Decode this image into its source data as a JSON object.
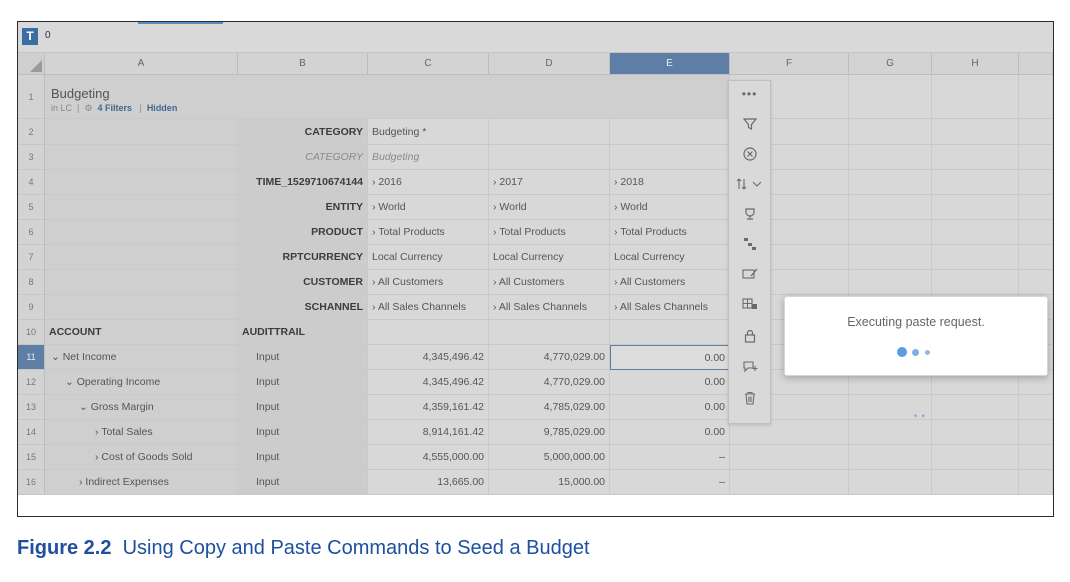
{
  "formula_bar": {
    "icon": "T",
    "value": "0"
  },
  "columns": [
    "A",
    "B",
    "C",
    "D",
    "E",
    "F",
    "G",
    "H"
  ],
  "rows": [
    "1",
    "2",
    "3",
    "4",
    "5",
    "6",
    "7",
    "8",
    "9",
    "10",
    "11",
    "12",
    "13",
    "14",
    "15",
    "16"
  ],
  "header": {
    "title": "Budgeting",
    "in_lc": "in LC",
    "filters": "4 Filters",
    "hidden": "Hidden"
  },
  "dims": [
    {
      "name": "CATEGORY",
      "c": "Budgeting *",
      "d": "",
      "e": ""
    },
    {
      "name": "CATEGORY",
      "c": "Budgeting",
      "d": "",
      "e": ""
    },
    {
      "name": "TIME_1529710674144",
      "c": "2016",
      "d": "2017",
      "e": "2018"
    },
    {
      "name": "ENTITY",
      "c": "World",
      "d": "World",
      "e": "World"
    },
    {
      "name": "PRODUCT",
      "c": "Total Products",
      "d": "Total Products",
      "e": "Total Products"
    },
    {
      "name": "RPTCURRENCY",
      "c": "Local Currency",
      "d": "Local Currency",
      "e": "Local Currency"
    },
    {
      "name": "CUSTOMER",
      "c": "All Customers",
      "d": "All Customers",
      "e": "All Customers"
    },
    {
      "name": "SCHANNEL",
      "c": "All Sales Channels",
      "d": "All Sales Channels",
      "e": "All Sales Channels"
    }
  ],
  "row_headers": {
    "account": "ACCOUNT",
    "audittrail": "AUDITTRAIL"
  },
  "data_rows": [
    {
      "account": "Net Income",
      "audit": "Input",
      "c": "4,345,496.42",
      "d": "4,770,029.00",
      "e": "0.00"
    },
    {
      "account": "Operating Income",
      "audit": "Input",
      "c": "4,345,496.42",
      "d": "4,770,029.00",
      "e": "0.00"
    },
    {
      "account": "Gross Margin",
      "audit": "Input",
      "c": "4,359,161.42",
      "d": "4,785,029.00",
      "e": "0.00"
    },
    {
      "account": "Total Sales",
      "audit": "Input",
      "c": "8,914,161.42",
      "d": "9,785,029.00",
      "e": "0.00"
    },
    {
      "account": "Cost of Goods Sold",
      "audit": "Input",
      "c": "4,555,000.00",
      "d": "5,000,000.00",
      "e": "–"
    },
    {
      "account": "Indirect Expenses",
      "audit": "Input",
      "c": "13,665.00",
      "d": "15,000.00",
      "e": "–"
    }
  ],
  "context_menu": [
    "more-icon",
    "filter-icon",
    "remove-icon",
    "sort-icon",
    "ranking-icon",
    "hierarchy-icon",
    "edit-formula-icon",
    "data-locking-icon",
    "lock-icon",
    "add-comment-icon",
    "delete-icon"
  ],
  "dialog": {
    "text": "Executing paste request."
  },
  "caption": {
    "figure": "Figure 2.2",
    "text": "Using Copy and Paste Commands to Seed a Budget"
  }
}
